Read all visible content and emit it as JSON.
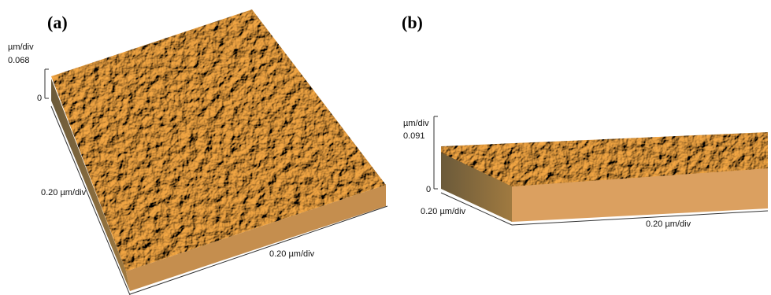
{
  "panels": [
    {
      "label": "(a)",
      "z_unit": "µm/div",
      "z_max": "0.068",
      "z_zero": "0",
      "y_axis": "0.20 µm/div",
      "x_axis": "0.20 µm/div"
    },
    {
      "label": "(b)",
      "z_unit": "µm/div",
      "z_max": "0.091",
      "z_zero": "0",
      "y_axis": "0.20 µm/div",
      "x_axis": "0.20 µm/div"
    }
  ]
}
